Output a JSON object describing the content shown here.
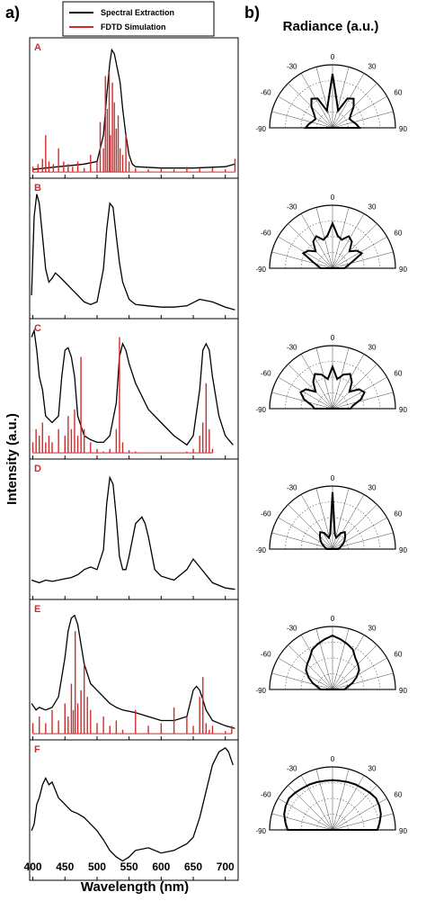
{
  "figure": {
    "panel_a_label": "a)",
    "panel_b_label": "b)",
    "y_axis_title": "Intensity (a.u.)",
    "x_axis_title": "Wavelength (nm)",
    "radiance_title": "Radiance (a.u.)",
    "legend": [
      {
        "label": "Spectral Extraction",
        "color": "#000000"
      },
      {
        "label": "FDTD Simulation",
        "color": "#d42a2a"
      }
    ],
    "colors": {
      "spectral": "#000000",
      "fdtd": "#d42a2a",
      "subplot_label": "#d42a2a"
    }
  },
  "chart_data": [
    {
      "type": "line",
      "label": "A",
      "xlim": [
        395,
        720
      ],
      "ylim": [
        0,
        1
      ],
      "series": [
        {
          "name": "Spectral Extraction",
          "x": [
            400,
            420,
            440,
            460,
            480,
            500,
            510,
            515,
            520,
            523,
            527,
            532,
            536,
            540,
            545,
            550,
            555,
            560,
            600,
            650,
            700,
            715
          ],
          "y": [
            0.04,
            0.05,
            0.06,
            0.07,
            0.08,
            0.1,
            0.3,
            0.6,
            0.85,
            0.95,
            0.92,
            0.8,
            0.7,
            0.5,
            0.3,
            0.15,
            0.08,
            0.06,
            0.05,
            0.05,
            0.06,
            0.08
          ]
        },
        {
          "name": "FDTD Simulation",
          "type": "spikes",
          "x": [
            400,
            408,
            415,
            420,
            425,
            432,
            440,
            448,
            455,
            462,
            470,
            480,
            490,
            500,
            505,
            510,
            513,
            516,
            519,
            521,
            524,
            527,
            530,
            533,
            536,
            540,
            545,
            550,
            560,
            580,
            600,
            620,
            640,
            660,
            680,
            700,
            715
          ],
          "y": [
            0.06,
            0.08,
            0.12,
            0.3,
            0.1,
            0.08,
            0.2,
            0.1,
            0.08,
            0.06,
            0.1,
            0.05,
            0.15,
            0.1,
            0.4,
            0.2,
            0.75,
            0.5,
            0.78,
            0.3,
            0.7,
            0.55,
            0.35,
            0.45,
            0.2,
            0.15,
            0.3,
            0.1,
            0.05,
            0.04,
            0.05,
            0.04,
            0.06,
            0.05,
            0.05,
            0.04,
            0.12
          ]
        }
      ],
      "radiance_polar": [
        0.45,
        0.4,
        0.35,
        0.32,
        0.38,
        0.5,
        0.6,
        0.55,
        0.3,
        0.45,
        0.9,
        0.45,
        0.3,
        0.55,
        0.6,
        0.5,
        0.38,
        0.32,
        0.35,
        0.4,
        0.45
      ]
    },
    {
      "type": "line",
      "label": "B",
      "xlim": [
        395,
        720
      ],
      "ylim": [
        0,
        1
      ],
      "series": [
        {
          "name": "Spectral Extraction",
          "x": [
            398,
            402,
            406,
            410,
            415,
            420,
            425,
            430,
            435,
            440,
            450,
            460,
            470,
            480,
            490,
            500,
            510,
            515,
            520,
            525,
            530,
            535,
            540,
            550,
            560,
            580,
            600,
            620,
            640,
            660,
            680,
            700,
            715
          ],
          "y": [
            0.15,
            0.75,
            0.92,
            0.85,
            0.6,
            0.35,
            0.25,
            0.28,
            0.32,
            0.3,
            0.25,
            0.2,
            0.15,
            0.1,
            0.08,
            0.1,
            0.35,
            0.65,
            0.85,
            0.82,
            0.6,
            0.4,
            0.25,
            0.12,
            0.08,
            0.07,
            0.06,
            0.06,
            0.07,
            0.12,
            0.1,
            0.06,
            0.04
          ]
        }
      ],
      "radiance_polar": [
        0.2,
        0.25,
        0.35,
        0.55,
        0.5,
        0.4,
        0.55,
        0.6,
        0.5,
        0.55,
        0.75,
        0.55,
        0.5,
        0.6,
        0.55,
        0.4,
        0.5,
        0.55,
        0.35,
        0.25,
        0.2
      ]
    },
    {
      "type": "line",
      "label": "C",
      "xlim": [
        395,
        720
      ],
      "ylim": [
        0,
        1
      ],
      "series": [
        {
          "name": "Spectral Extraction",
          "x": [
            398,
            402,
            406,
            410,
            415,
            420,
            430,
            440,
            445,
            450,
            455,
            460,
            465,
            470,
            480,
            490,
            500,
            510,
            520,
            530,
            535,
            540,
            545,
            550,
            560,
            580,
            600,
            620,
            640,
            650,
            660,
            665,
            670,
            675,
            680,
            690,
            700,
            712
          ],
          "y": [
            0.9,
            0.95,
            0.8,
            0.6,
            0.5,
            0.3,
            0.25,
            0.3,
            0.6,
            0.8,
            0.82,
            0.75,
            0.6,
            0.3,
            0.15,
            0.12,
            0.1,
            0.1,
            0.15,
            0.4,
            0.75,
            0.85,
            0.8,
            0.7,
            0.55,
            0.35,
            0.25,
            0.15,
            0.08,
            0.15,
            0.5,
            0.8,
            0.85,
            0.8,
            0.6,
            0.3,
            0.15,
            0.08
          ]
        },
        {
          "name": "FDTD Simulation",
          "type": "spikes",
          "x": [
            400,
            405,
            410,
            415,
            420,
            425,
            430,
            440,
            450,
            455,
            460,
            465,
            470,
            475,
            480,
            490,
            500,
            510,
            520,
            530,
            535,
            540,
            550,
            560,
            580,
            600,
            620,
            640,
            650,
            660,
            665,
            670,
            675,
            680
          ],
          "y": [
            0.1,
            0.2,
            0.15,
            0.25,
            0.1,
            0.15,
            0.1,
            0.2,
            0.15,
            0.3,
            0.2,
            0.35,
            0.15,
            0.75,
            0.2,
            0.1,
            0.05,
            0.03,
            0.05,
            0.2,
            0.9,
            0.1,
            0.04,
            0.03,
            0.02,
            0.02,
            0.02,
            0.03,
            0.05,
            0.15,
            0.25,
            0.55,
            0.2,
            0.05
          ]
        }
      ],
      "radiance_polar": [
        0.3,
        0.35,
        0.5,
        0.6,
        0.55,
        0.4,
        0.55,
        0.65,
        0.6,
        0.5,
        0.7,
        0.5,
        0.6,
        0.65,
        0.55,
        0.4,
        0.55,
        0.6,
        0.5,
        0.35,
        0.3
      ]
    },
    {
      "type": "line",
      "label": "D",
      "xlim": [
        395,
        720
      ],
      "ylim": [
        0,
        1
      ],
      "series": [
        {
          "name": "Spectral Extraction",
          "x": [
            398,
            410,
            420,
            430,
            440,
            450,
            460,
            470,
            480,
            490,
            500,
            510,
            515,
            520,
            525,
            530,
            535,
            540,
            545,
            550,
            560,
            570,
            575,
            580,
            590,
            600,
            620,
            640,
            650,
            660,
            680,
            700,
            715
          ],
          "y": [
            0.12,
            0.1,
            0.12,
            0.11,
            0.12,
            0.13,
            0.14,
            0.16,
            0.2,
            0.22,
            0.2,
            0.35,
            0.7,
            0.9,
            0.85,
            0.6,
            0.3,
            0.2,
            0.2,
            0.3,
            0.55,
            0.6,
            0.55,
            0.45,
            0.2,
            0.15,
            0.12,
            0.2,
            0.28,
            0.22,
            0.1,
            0.06,
            0.05
          ]
        }
      ],
      "radiance_polar": [
        0.1,
        0.12,
        0.15,
        0.2,
        0.25,
        0.3,
        0.35,
        0.3,
        0.2,
        0.25,
        0.95,
        0.25,
        0.2,
        0.3,
        0.35,
        0.3,
        0.25,
        0.2,
        0.15,
        0.12,
        0.1
      ]
    },
    {
      "type": "line",
      "label": "E",
      "xlim": [
        395,
        720
      ],
      "ylim": [
        0,
        1
      ],
      "series": [
        {
          "name": "Spectral Extraction",
          "x": [
            398,
            405,
            410,
            420,
            430,
            440,
            450,
            455,
            460,
            465,
            470,
            475,
            480,
            490,
            500,
            510,
            520,
            530,
            540,
            560,
            580,
            600,
            620,
            640,
            645,
            650,
            655,
            660,
            665,
            670,
            680,
            700,
            715
          ],
          "y": [
            0.25,
            0.2,
            0.22,
            0.2,
            0.22,
            0.3,
            0.6,
            0.8,
            0.9,
            0.92,
            0.85,
            0.7,
            0.55,
            0.4,
            0.35,
            0.3,
            0.25,
            0.22,
            0.2,
            0.18,
            0.15,
            0.12,
            0.12,
            0.15,
            0.25,
            0.35,
            0.38,
            0.35,
            0.28,
            0.2,
            0.12,
            0.08,
            0.06
          ]
        },
        {
          "name": "FDTD Simulation",
          "type": "spikes",
          "x": [
            400,
            410,
            420,
            430,
            440,
            450,
            455,
            460,
            463,
            466,
            470,
            475,
            480,
            485,
            490,
            500,
            510,
            520,
            530,
            540,
            560,
            580,
            600,
            620,
            640,
            650,
            660,
            665,
            670,
            675,
            680,
            700,
            710
          ],
          "y": [
            0.1,
            0.15,
            0.1,
            0.2,
            0.12,
            0.25,
            0.15,
            0.4,
            0.2,
            0.8,
            0.25,
            0.35,
            0.55,
            0.3,
            0.2,
            0.1,
            0.15,
            0.08,
            0.12,
            0.05,
            0.2,
            0.08,
            0.1,
            0.22,
            0.15,
            0.08,
            0.3,
            0.45,
            0.1,
            0.05,
            0.08,
            0.04,
            0.08
          ]
        }
      ],
      "radiance_polar": [
        0.2,
        0.25,
        0.35,
        0.45,
        0.55,
        0.6,
        0.65,
        0.75,
        0.8,
        0.85,
        0.9,
        0.85,
        0.8,
        0.75,
        0.65,
        0.6,
        0.55,
        0.45,
        0.35,
        0.25,
        0.2
      ]
    },
    {
      "type": "line",
      "label": "F",
      "xlim": [
        395,
        720
      ],
      "ylim": [
        0,
        1
      ],
      "series": [
        {
          "name": "Spectral Extraction",
          "x": [
            398,
            402,
            406,
            410,
            415,
            420,
            425,
            430,
            440,
            450,
            460,
            470,
            480,
            490,
            500,
            510,
            520,
            530,
            540,
            550,
            560,
            580,
            600,
            620,
            640,
            650,
            660,
            670,
            680,
            690,
            700,
            705,
            712
          ],
          "y": [
            0.35,
            0.4,
            0.55,
            0.6,
            0.7,
            0.75,
            0.7,
            0.72,
            0.6,
            0.55,
            0.5,
            0.48,
            0.45,
            0.4,
            0.35,
            0.28,
            0.2,
            0.15,
            0.12,
            0.15,
            0.2,
            0.22,
            0.18,
            0.2,
            0.25,
            0.3,
            0.45,
            0.65,
            0.85,
            0.95,
            0.98,
            0.95,
            0.85
          ]
        }
      ],
      "radiance_polar": [
        0.75,
        0.8,
        0.85,
        0.88,
        0.9,
        0.88,
        0.86,
        0.85,
        0.84,
        0.83,
        0.83,
        0.83,
        0.84,
        0.85,
        0.86,
        0.88,
        0.9,
        0.88,
        0.85,
        0.8,
        0.75
      ]
    }
  ],
  "x_ticks": [
    "400",
    "450",
    "500",
    "550",
    "600",
    "650",
    "700"
  ],
  "angle_ticks": [
    "-90",
    "-60",
    "-30",
    "0",
    "30",
    "60",
    "90"
  ]
}
